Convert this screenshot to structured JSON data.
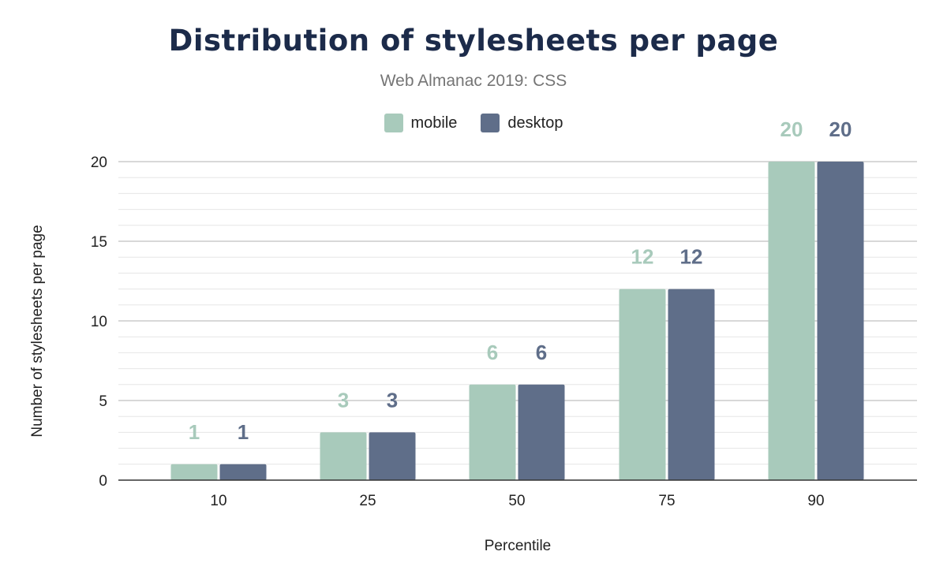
{
  "chart_data": {
    "type": "bar",
    "title": "Distribution of stylesheets per page",
    "subtitle": "Web Almanac 2019: CSS",
    "xlabel": "Percentile",
    "ylabel": "Number of stylesheets per page",
    "categories": [
      "10",
      "25",
      "50",
      "75",
      "90"
    ],
    "series": [
      {
        "name": "mobile",
        "color": "#a8cabb",
        "values": [
          1,
          3,
          6,
          12,
          20
        ]
      },
      {
        "name": "desktop",
        "color": "#5f6e89",
        "values": [
          1,
          3,
          6,
          12,
          20
        ]
      }
    ],
    "ylim": [
      0,
      20
    ],
    "yticks": [
      "0",
      "5",
      "10",
      "15",
      "20"
    ],
    "grid": true,
    "legend": "top",
    "data_labels": true
  }
}
